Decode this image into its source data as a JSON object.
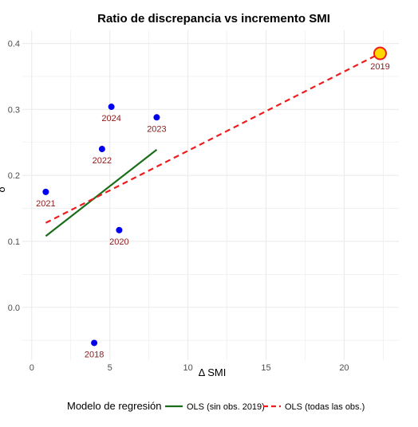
{
  "chart_data": {
    "type": "scatter",
    "title": "Ratio de discrepancia vs incremento SMI",
    "xlabel": "Δ SMI",
    "ylabel": "δ",
    "xlim": [
      -0.6,
      23.5
    ],
    "ylim": [
      -0.08,
      0.42
    ],
    "xticks": [
      0,
      5,
      10,
      15,
      20
    ],
    "yticks": [
      0.0,
      0.1,
      0.2,
      0.3,
      0.4
    ],
    "ytick_labels": [
      "0.0",
      "0.1",
      "0.2",
      "0.3",
      "0.4"
    ],
    "grid": true,
    "points": [
      {
        "label": "2018",
        "x": 4.0,
        "y": -0.054,
        "highlight": false
      },
      {
        "label": "2019",
        "x": 22.3,
        "y": 0.385,
        "highlight": true
      },
      {
        "label": "2020",
        "x": 5.6,
        "y": 0.117,
        "highlight": false
      },
      {
        "label": "2021",
        "x": 0.9,
        "y": 0.175,
        "highlight": false
      },
      {
        "label": "2022",
        "x": 4.5,
        "y": 0.24,
        "highlight": false
      },
      {
        "label": "2023",
        "x": 8.0,
        "y": 0.288,
        "highlight": false
      },
      {
        "label": "2024",
        "x": 5.1,
        "y": 0.304,
        "highlight": false
      }
    ],
    "series": [
      {
        "name": "OLS (sin obs. 2019)",
        "color": "#1a6e1a",
        "dash": "solid",
        "x": [
          0.9,
          8.0
        ],
        "y": [
          0.108,
          0.239
        ]
      },
      {
        "name": "OLS (todas las obs.)",
        "color": "#ee1c1c",
        "dash": "dashed",
        "x": [
          0.9,
          22.3
        ],
        "y": [
          0.128,
          0.385
        ]
      }
    ],
    "legend": {
      "title": "Modelo de regresión",
      "position": "bottom"
    },
    "colors": {
      "points": "#0000ee",
      "highlight_fill": "#ffd700",
      "highlight_edge": "#ee1c1c",
      "point_labels": "#8b1a1a",
      "grid": "#ebebeb"
    }
  }
}
